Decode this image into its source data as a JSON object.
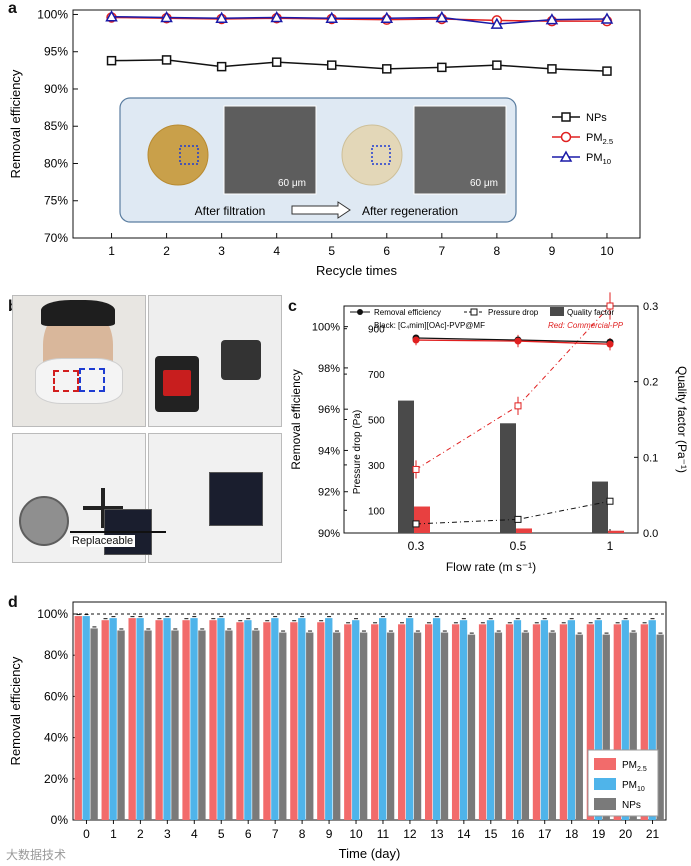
{
  "panels": {
    "a": "a",
    "b": "b",
    "c": "c",
    "d": "d"
  },
  "watermark": "大数据技术",
  "panel_b": {
    "label": "Replaceable"
  },
  "chart_data": [
    {
      "id": "a",
      "type": "line",
      "xlabel": "Recycle times",
      "ylabel": "Removal efficiency",
      "x": [
        1,
        2,
        3,
        4,
        5,
        6,
        7,
        8,
        9,
        10
      ],
      "xlim": [
        0.3,
        10.6
      ],
      "ylim": [
        70,
        100.6
      ],
      "yticks": [
        70,
        75,
        80,
        85,
        90,
        95,
        100
      ],
      "ytick_labels": [
        "70%",
        "75%",
        "80%",
        "85%",
        "90%",
        "95%",
        "100%"
      ],
      "series": [
        {
          "name": "NPs",
          "sub": "",
          "color": "#111111",
          "marker": "square",
          "values": [
            93.8,
            93.9,
            93.0,
            93.6,
            93.2,
            92.7,
            92.9,
            93.2,
            92.7,
            92.4
          ]
        },
        {
          "name": "PM",
          "sub": "2.5",
          "color": "#e02020",
          "marker": "circle",
          "values": [
            99.6,
            99.5,
            99.4,
            99.5,
            99.4,
            99.3,
            99.4,
            99.2,
            99.1,
            99.1
          ]
        },
        {
          "name": "PM",
          "sub": "10",
          "color": "#1a1aa8",
          "marker": "triangle",
          "values": [
            99.7,
            99.6,
            99.5,
            99.6,
            99.5,
            99.5,
            99.6,
            98.7,
            99.3,
            99.4
          ]
        }
      ],
      "legend_position": "right",
      "inset": {
        "caption_left": "After filtration",
        "caption_right": "After regeneration",
        "scale_left": "60 μm",
        "scale_right": "60 μm"
      }
    },
    {
      "id": "c",
      "type": "bar+line",
      "xlabel": "Flow rate (m s⁻¹)",
      "ylabel_left": "Removal efficiency",
      "ylabel_inner": "Pressure drop (Pa)",
      "ylabel_right": "Quality factor (Pa⁻¹)",
      "categories": [
        "0.3",
        "0.5",
        "1"
      ],
      "legend": [
        "Removal efficiency",
        "Pressure drop",
        "Quality factor"
      ],
      "annotation_black": "Black: [C₄mim][OAc]-PVP@MF",
      "annotation_red": "Red: Commercial-PP",
      "left_axis": {
        "ylim": [
          90,
          101
        ],
        "ticks": [
          90,
          92,
          94,
          96,
          98,
          100
        ],
        "tick_labels": [
          "90%",
          "92%",
          "94%",
          "96%",
          "98%",
          "100%"
        ]
      },
      "inner_axis": {
        "ylim": [
          0,
          1000
        ],
        "ticks": [
          100,
          300,
          500,
          700,
          900
        ],
        "tick_labels": [
          "100",
          "300",
          "500",
          "700",
          "900"
        ]
      },
      "right_axis": {
        "ylim": [
          0,
          0.3
        ],
        "ticks": [
          0.0,
          0.1,
          0.2,
          0.3
        ],
        "tick_labels": [
          "0.0",
          "0.1",
          "0.2",
          "0.3"
        ]
      },
      "quality_factor": {
        "black": [
          0.175,
          0.145,
          0.068
        ],
        "red": [
          0.035,
          0.006,
          0.003
        ]
      },
      "removal_efficiency": {
        "black": [
          99.45,
          99.35,
          99.25
        ],
        "red": [
          99.35,
          99.3,
          99.15
        ],
        "red_err": [
          0.25,
          0.3,
          0.3
        ]
      },
      "pressure_drop": {
        "black": [
          40,
          60,
          140
        ],
        "red": [
          280,
          560,
          1000
        ],
        "red_err": [
          40,
          40,
          60
        ]
      },
      "colors": {
        "black_bar": "#4a4a4a",
        "red_bar": "#e84040",
        "red_line": "#e02020"
      }
    },
    {
      "id": "d",
      "type": "bar",
      "xlabel": "Time (day)",
      "ylabel": "Removal efficiency",
      "categories": [
        "0",
        "1",
        "2",
        "3",
        "4",
        "5",
        "6",
        "7",
        "8",
        "9",
        "10",
        "11",
        "12",
        "13",
        "14",
        "15",
        "16",
        "17",
        "18",
        "19",
        "20",
        "21"
      ],
      "ylim": [
        0,
        100
      ],
      "yticks": [
        0,
        20,
        40,
        60,
        80,
        100
      ],
      "ytick_labels": [
        "0%",
        "20%",
        "40%",
        "60%",
        "80%",
        "100%"
      ],
      "reference_line": 100,
      "series": [
        {
          "name": "PM",
          "sub": "2.5",
          "color": "#f26b6b",
          "values": [
            99,
            97,
            98,
            97,
            97,
            97,
            96,
            96,
            96,
            96,
            95,
            95,
            95,
            95,
            95,
            95,
            95,
            95,
            95,
            95,
            95,
            95
          ]
        },
        {
          "name": "PM",
          "sub": "10",
          "color": "#4fb4ea",
          "values": [
            99,
            98,
            98,
            98,
            98,
            98,
            97,
            98,
            98,
            98,
            97,
            98,
            98,
            98,
            97,
            97,
            97,
            97,
            97,
            97,
            97,
            97
          ]
        },
        {
          "name": "NPs",
          "sub": "",
          "color": "#7a7a7a",
          "values": [
            93,
            92,
            92,
            92,
            92,
            92,
            92,
            91,
            91,
            91,
            91,
            91,
            91,
            91,
            90,
            91,
            91,
            91,
            90,
            90,
            91,
            90
          ]
        }
      ],
      "legend_position": "bottom-right"
    }
  ]
}
